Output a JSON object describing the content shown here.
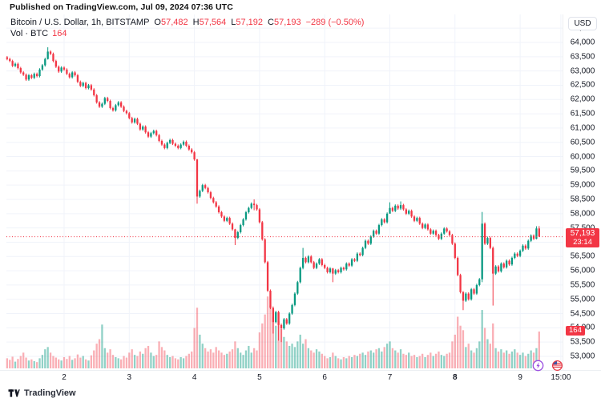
{
  "published_bar": {
    "text": "Published on TradingView.com, Jul 09, 2024 07:36 UTC"
  },
  "legend": {
    "symbol": "Bitcoin / U.S. Dollar, 1h, BITSTAMP",
    "items": [
      {
        "k": "O",
        "v": "57,482"
      },
      {
        "k": "H",
        "v": "57,564"
      },
      {
        "k": "L",
        "v": "57,192"
      },
      {
        "k": "C",
        "v": "57,193"
      }
    ],
    "change": "−289 (−0.50%)",
    "vol_label": "Vol · BTC",
    "vol_value": "164"
  },
  "price_axis": {
    "currency": "USD",
    "ticks": [
      {
        "v": 53000,
        "label": "53,000"
      },
      {
        "v": 53500,
        "label": "53,500"
      },
      {
        "v": 54000,
        "label": "54,000"
      },
      {
        "v": 54500,
        "label": "54,500"
      },
      {
        "v": 55000,
        "label": "55,000"
      },
      {
        "v": 55500,
        "label": "55,500"
      },
      {
        "v": 56000,
        "label": "56,000"
      },
      {
        "v": 56500,
        "label": "56,500"
      },
      {
        "v": 57000,
        "label": "57,000"
      },
      {
        "v": 57500,
        "label": "57,500"
      },
      {
        "v": 58000,
        "label": "58,000"
      },
      {
        "v": 58500,
        "label": "58,500"
      },
      {
        "v": 59000,
        "label": "59,000"
      },
      {
        "v": 59500,
        "label": "59,500"
      },
      {
        "v": 60000,
        "label": "60,000"
      },
      {
        "v": 60500,
        "label": "60,500"
      },
      {
        "v": 61000,
        "label": "61,000"
      },
      {
        "v": 61500,
        "label": "61,500"
      },
      {
        "v": 62000,
        "label": "62,000"
      },
      {
        "v": 62500,
        "label": "62,500"
      },
      {
        "v": 63000,
        "label": "63,000"
      },
      {
        "v": 63500,
        "label": "63,500"
      },
      {
        "v": 64000,
        "label": "64,000"
      },
      {
        "v": 64500,
        "label": "64,500"
      }
    ],
    "last_price_badge": {
      "price": "57,193",
      "countdown": "23:14"
    },
    "volume_badge": "164"
  },
  "time_axis": {
    "ticks": [
      {
        "label": "2",
        "i": 21
      },
      {
        "label": "3",
        "i": 45
      },
      {
        "label": "4",
        "i": 69
      },
      {
        "label": "5",
        "i": 93
      },
      {
        "label": "6",
        "i": 117
      },
      {
        "label": "7",
        "i": 141
      },
      {
        "label": "8",
        "i": 165,
        "bold": true
      },
      {
        "label": "9",
        "i": 189
      },
      {
        "label": "15:00",
        "i": 204
      }
    ]
  },
  "footer": {
    "brand": "TradingView"
  },
  "colors": {
    "up": "#089981",
    "down": "#f23645",
    "vol_up": "rgba(8,153,129,0.45)",
    "vol_down": "rgba(242,54,69,0.40)",
    "grid": "#f0f3fa",
    "last_price_line": "#f23645",
    "badge_bg": "#f23645"
  },
  "chart_data": {
    "type": "candlestick",
    "title": "Bitcoin / U.S. Dollar",
    "exchange": "BITSTAMP",
    "interval": "1h",
    "currency": "USD",
    "legend_position": "top-left",
    "grid": true,
    "ylim": [
      52900,
      64650
    ],
    "x_range_days": [
      "Jul 1 03:00",
      "Jul 9 07:00"
    ],
    "last_bar": {
      "open": 57482,
      "high": 57564,
      "low": 57192,
      "close": 57193,
      "change": -289,
      "change_pct": -0.5,
      "volume_btc": 164
    },
    "last_price": 57193,
    "first_open": 63480,
    "closes": [
      63420,
      63350,
      63180,
      63250,
      63100,
      62950,
      62870,
      62700,
      62850,
      62760,
      62900,
      62820,
      63050,
      63200,
      63420,
      63680,
      63600,
      63350,
      63150,
      62980,
      63120,
      63050,
      62900,
      62780,
      62950,
      62850,
      62620,
      62480,
      62580,
      62400,
      62500,
      62350,
      62150,
      61900,
      61750,
      61850,
      62050,
      61950,
      61700,
      61620,
      61800,
      61900,
      61750,
      61600,
      61520,
      61350,
      61200,
      61320,
      61150,
      60950,
      61050,
      60850,
      60700,
      60820,
      60900,
      60750,
      60550,
      60420,
      60300,
      60480,
      60580,
      60450,
      60380,
      60300,
      60420,
      60520,
      60380,
      60250,
      60150,
      59900,
      58600,
      58800,
      59000,
      58900,
      58750,
      58550,
      58400,
      58250,
      58050,
      57900,
      57750,
      57850,
      57650,
      57450,
      57150,
      57350,
      57600,
      57800,
      58050,
      58200,
      58350,
      58300,
      58150,
      57700,
      57100,
      56300,
      55300,
      54700,
      54200,
      54550,
      54100,
      53980,
      54300,
      54150,
      54500,
      54800,
      55200,
      55600,
      56100,
      56450,
      56300,
      56500,
      56300,
      56100,
      56250,
      56400,
      56200,
      56100,
      55950,
      56080,
      55900,
      56020,
      55950,
      56100,
      56050,
      56250,
      56180,
      56400,
      56350,
      56600,
      56550,
      56800,
      57050,
      56950,
      57200,
      57400,
      57300,
      57600,
      57800,
      57700,
      58000,
      58200,
      58100,
      58280,
      58180,
      58300,
      58150,
      58000,
      58100,
      57900,
      57750,
      57850,
      57650,
      57500,
      57620,
      57450,
      57300,
      57400,
      57250,
      57120,
      57300,
      57480,
      57380,
      57250,
      56950,
      56450,
      55850,
      55250,
      54950,
      55200,
      55000,
      55350,
      55200,
      55500,
      55700,
      57650,
      56950,
      57150,
      56800,
      55900,
      56150,
      55980,
      56250,
      56120,
      56350,
      56220,
      56450,
      56600,
      56520,
      56700,
      56880,
      56780,
      57050,
      57230,
      57120,
      57482,
      57193
    ],
    "volumes": [
      45,
      38,
      52,
      30,
      42,
      55,
      70,
      48,
      35,
      40,
      32,
      28,
      45,
      60,
      85,
      95,
      70,
      55,
      48,
      40,
      35,
      50,
      42,
      55,
      38,
      45,
      62,
      48,
      55,
      40,
      35,
      58,
      80,
      110,
      130,
      195,
      90,
      70,
      85,
      60,
      50,
      45,
      40,
      55,
      48,
      70,
      85,
      60,
      55,
      75,
      65,
      90,
      100,
      70,
      55,
      60,
      120,
      95,
      80,
      60,
      50,
      55,
      45,
      40,
      50,
      45,
      55,
      65,
      75,
      180,
      270,
      150,
      110,
      90,
      75,
      85,
      70,
      95,
      80,
      70,
      60,
      65,
      75,
      85,
      120,
      90,
      70,
      60,
      80,
      100,
      70,
      90,
      80,
      160,
      200,
      240,
      320,
      280,
      230,
      190,
      210,
      175,
      140,
      120,
      100,
      110,
      95,
      120,
      150,
      110,
      130,
      90,
      80,
      70,
      85,
      75,
      65,
      55,
      45,
      50,
      70,
      55,
      45,
      40,
      50,
      45,
      55,
      50,
      60,
      55,
      65,
      70,
      60,
      75,
      80,
      70,
      85,
      90,
      75,
      95,
      110,
      120,
      90,
      80,
      70,
      85,
      65,
      60,
      70,
      55,
      60,
      50,
      55,
      65,
      50,
      60,
      70,
      55,
      65,
      75,
      60,
      55,
      65,
      70,
      120,
      150,
      230,
      190,
      170,
      95,
      110,
      80,
      70,
      90,
      120,
      260,
      180,
      130,
      110,
      200,
      90,
      75,
      85,
      70,
      80,
      65,
      75,
      85,
      70,
      60,
      70,
      55,
      65,
      80,
      70,
      90,
      164
    ],
    "wick_overrides": {
      "15": [
        63830,
        63400
      ],
      "70": [
        59920,
        58350
      ],
      "84": [
        57470,
        56900
      ],
      "91": [
        58500,
        58120
      ],
      "98": [
        54750,
        53800
      ],
      "100": [
        54600,
        53550
      ],
      "101": [
        54150,
        53500
      ],
      "109": [
        56800,
        56050
      ],
      "120": [
        56100,
        55600
      ],
      "141": [
        58400,
        58050
      ],
      "145": [
        58430,
        58130
      ],
      "168": [
        55290,
        54620
      ],
      "175": [
        58060,
        55600
      ],
      "179": [
        56850,
        54780
      ],
      "195": [
        57560,
        57100
      ],
      "196": [
        57564,
        57192
      ]
    }
  }
}
